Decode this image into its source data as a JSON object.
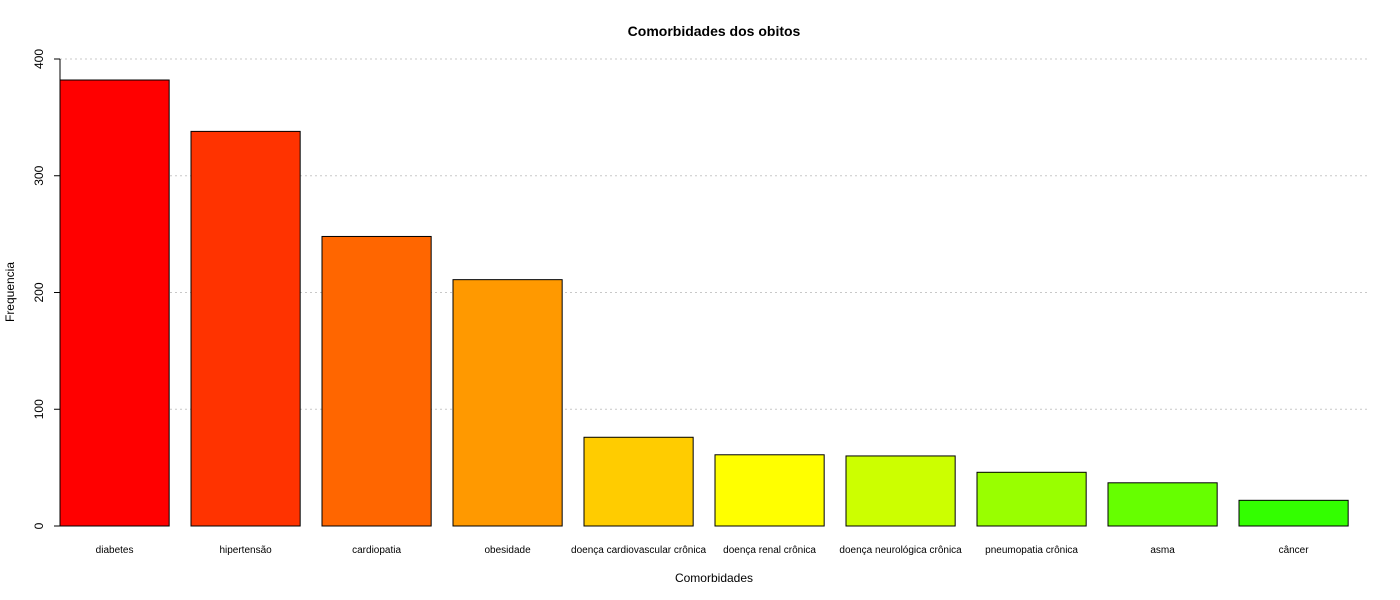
{
  "chart_data": {
    "type": "bar",
    "title": "Comorbidades dos obitos",
    "xlabel": "Comorbidades",
    "ylabel": "Frequencia",
    "ylim": [
      0,
      400
    ],
    "yticks": [
      0,
      100,
      200,
      300,
      400
    ],
    "grid": true,
    "categories": [
      "diabetes",
      "hipertensão",
      "cardiopatia",
      "obesidade",
      "doença cardiovascular crônica",
      "doença renal crônica",
      "doença neurológica crônica",
      "pneumopatia crônica",
      "asma",
      "câncer"
    ],
    "values": [
      382,
      338,
      248,
      211,
      76,
      61,
      60,
      46,
      37,
      22
    ],
    "colors": [
      "#FF0000",
      "#FF3300",
      "#FF6600",
      "#FF9900",
      "#FFCC00",
      "#FFFF00",
      "#CCFF00",
      "#99FF00",
      "#66FF00",
      "#33FF00"
    ]
  }
}
